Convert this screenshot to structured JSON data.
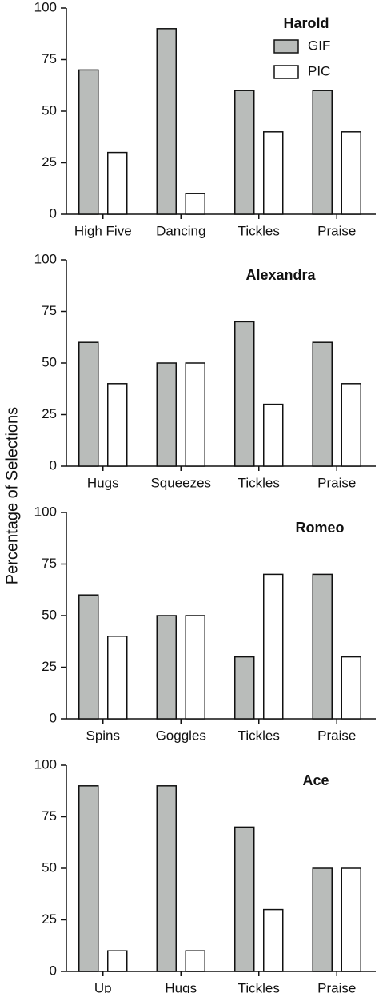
{
  "ylabel": "Percentage of Selections",
  "chart_data": [
    {
      "type": "bar",
      "title": "Harold",
      "categories": [
        "High Five",
        "Dancing",
        "Tickles",
        "Praise"
      ],
      "series": [
        {
          "name": "GIF",
          "color": "#b9bcba",
          "values": [
            70,
            90,
            60,
            60
          ]
        },
        {
          "name": "PIC",
          "color": "#ffffff",
          "values": [
            30,
            10,
            40,
            40
          ]
        }
      ],
      "ylim": [
        0,
        100
      ],
      "yticks": [
        0,
        25,
        50,
        75,
        100
      ],
      "legend": "upper right"
    },
    {
      "type": "bar",
      "title": "Alexandra",
      "categories": [
        "Hugs",
        "Squeezes",
        "Tickles",
        "Praise"
      ],
      "series": [
        {
          "name": "GIF",
          "color": "#b9bcba",
          "values": [
            60,
            50,
            70,
            60
          ]
        },
        {
          "name": "PIC",
          "color": "#ffffff",
          "values": [
            40,
            50,
            30,
            40
          ]
        }
      ],
      "ylim": [
        0,
        100
      ],
      "yticks": [
        0,
        25,
        50,
        75,
        100
      ]
    },
    {
      "type": "bar",
      "title": "Romeo",
      "categories": [
        "Spins",
        "Goggles",
        "Tickles",
        "Praise"
      ],
      "series": [
        {
          "name": "GIF",
          "color": "#b9bcba",
          "values": [
            60,
            50,
            30,
            70
          ]
        },
        {
          "name": "PIC",
          "color": "#ffffff",
          "values": [
            40,
            50,
            70,
            30
          ]
        }
      ],
      "ylim": [
        0,
        100
      ],
      "yticks": [
        0,
        25,
        50,
        75,
        100
      ]
    },
    {
      "type": "bar",
      "title": "Ace",
      "categories": [
        "Up",
        "Hugs",
        "Tickles",
        "Praise"
      ],
      "series": [
        {
          "name": "GIF",
          "color": "#b9bcba",
          "values": [
            90,
            90,
            70,
            50
          ]
        },
        {
          "name": "PIC",
          "color": "#ffffff",
          "values": [
            10,
            10,
            30,
            50
          ]
        }
      ],
      "ylim": [
        0,
        100
      ],
      "yticks": [
        0,
        25,
        50,
        75,
        100
      ]
    }
  ]
}
